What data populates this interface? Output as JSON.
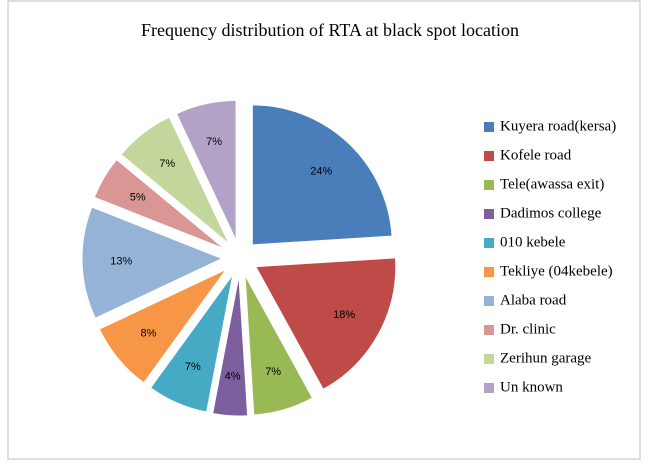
{
  "chart_data": {
    "type": "pie",
    "title": "Frequency distribution of RTA at black spot location",
    "categories": [
      "Kuyera road(kersa)",
      "Kofele road",
      "Tele(awassa exit)",
      "Dadimos college",
      "010 kebele",
      "Tekliye (04kebele)",
      "Alaba road",
      "Dr. clinic",
      "Zerihun garage",
      "Un known"
    ],
    "values": [
      24,
      18,
      7,
      4,
      7,
      8,
      13,
      5,
      7,
      7
    ],
    "value_labels": [
      "24%",
      "18%",
      "7%",
      "4%",
      "7%",
      "8%",
      "13%",
      "5%",
      "7%",
      "7%"
    ],
    "colors": [
      "#4a7ebb",
      "#be4b48",
      "#98b954",
      "#7d5fa0",
      "#46aac5",
      "#f79646",
      "#95b3d7",
      "#d99694",
      "#c3d69b",
      "#b3a2c7"
    ],
    "legend": "right"
  }
}
